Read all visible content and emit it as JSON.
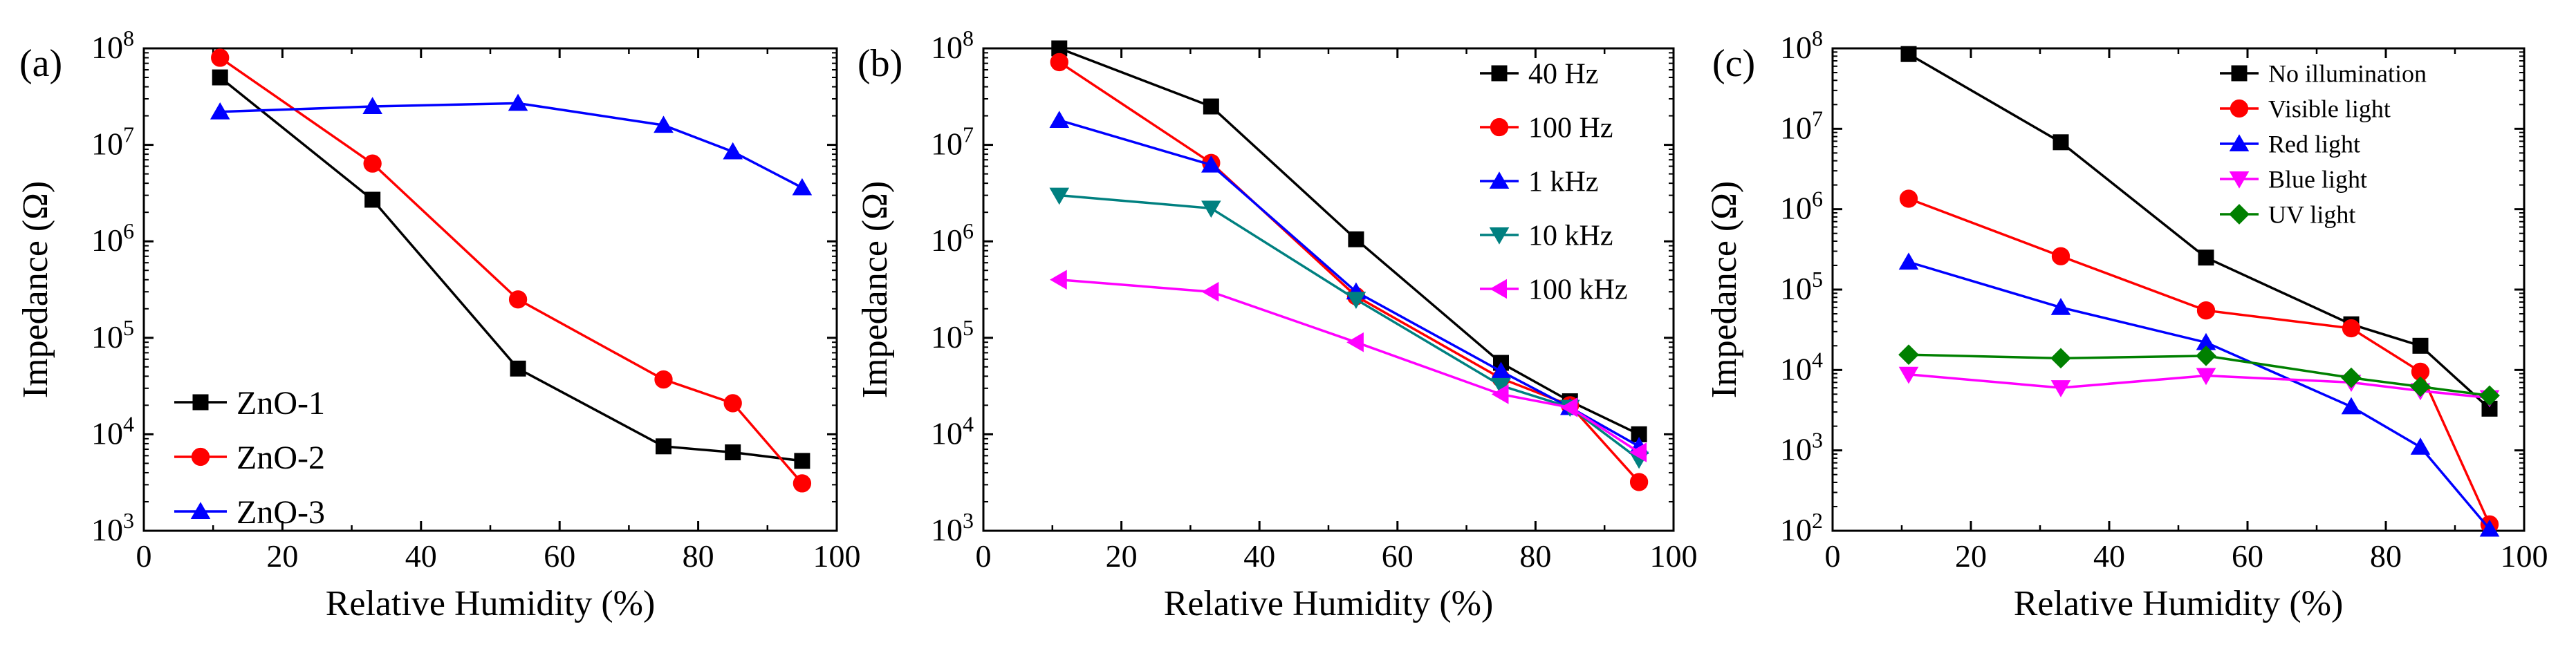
{
  "colors": {
    "black": "#000000",
    "red": "#ff0000",
    "blue": "#0000ff",
    "teal": "#008080",
    "magenta": "#ff00ff",
    "green": "#008000"
  },
  "chart_data": [
    {
      "type": "line",
      "panel": "(a)",
      "xlabel": "Relative Humidity (%)",
      "ylabel": "Impedance (Ω)",
      "xlim": [
        0,
        100
      ],
      "xticks": [
        0,
        20,
        40,
        60,
        80,
        100
      ],
      "yscale": "log",
      "ylim_exp": [
        3,
        8
      ],
      "legend_position": "bottom-left",
      "x": [
        11,
        33,
        54,
        75,
        85,
        95
      ],
      "series": [
        {
          "name": "ZnO-1",
          "color": "#000000",
          "marker": "square",
          "values": [
            50000000,
            2700000,
            48000,
            7500,
            6500,
            5300
          ]
        },
        {
          "name": "ZnO-2",
          "color": "#ff0000",
          "marker": "circle",
          "values": [
            80000000,
            6400000,
            250000,
            37000,
            21000,
            3100
          ]
        },
        {
          "name": "ZnO-3",
          "color": "#0000ff",
          "marker": "triangle-up",
          "values": [
            22000000,
            25000000,
            27000000,
            16000000,
            8500000,
            3600000
          ]
        }
      ]
    },
    {
      "type": "line",
      "panel": "(b)",
      "xlabel": "Relative Humidity (%)",
      "ylabel": "Impedance (Ω)",
      "xlim": [
        0,
        100
      ],
      "xticks": [
        0,
        20,
        40,
        60,
        80,
        100
      ],
      "yscale": "log",
      "ylim_exp": [
        3,
        8
      ],
      "legend_position": "top-right",
      "x": [
        11,
        33,
        54,
        75,
        85,
        95
      ],
      "series": [
        {
          "name": "40 Hz",
          "color": "#000000",
          "marker": "square",
          "values": [
            100000000,
            25000000,
            1050000,
            55000,
            22000,
            10000
          ]
        },
        {
          "name": "100 Hz",
          "color": "#ff0000",
          "marker": "circle",
          "values": [
            72000000,
            6500000,
            270000,
            38000,
            20000,
            3200
          ]
        },
        {
          "name": "1 kHz",
          "color": "#0000ff",
          "marker": "triangle-up",
          "values": [
            18000000,
            6200000,
            300000,
            45000,
            19000,
            7500
          ]
        },
        {
          "name": "10 kHz",
          "color": "#008080",
          "marker": "triangle-down",
          "values": [
            3000000,
            2200000,
            250000,
            32000,
            19000,
            5500
          ]
        },
        {
          "name": "100 kHz",
          "color": "#ff00ff",
          "marker": "triangle-left",
          "values": [
            400000,
            300000,
            90000,
            26000,
            19000,
            6500
          ]
        }
      ]
    },
    {
      "type": "line",
      "panel": "(c)",
      "xlabel": "Relative Humidity (%)",
      "ylabel": "Impedance (Ω)",
      "xlim": [
        0,
        100
      ],
      "xticks": [
        0,
        20,
        40,
        60,
        80,
        100
      ],
      "yscale": "log",
      "ylim_exp": [
        2,
        8
      ],
      "legend_position": "top-right",
      "x": [
        11,
        33,
        54,
        75,
        85,
        95
      ],
      "series": [
        {
          "name": "No illumination",
          "color": "#000000",
          "marker": "square",
          "values": [
            85000000,
            6800000,
            250000,
            37000,
            20000,
            3300
          ]
        },
        {
          "name": "Visible light",
          "color": "#ff0000",
          "marker": "circle",
          "values": [
            1350000,
            260000,
            55000,
            33000,
            9500,
            120
          ]
        },
        {
          "name": "Red light",
          "color": "#0000ff",
          "marker": "triangle-up",
          "values": [
            220000,
            60000,
            22000,
            3500,
            1100,
            105
          ]
        },
        {
          "name": "Blue light",
          "color": "#ff00ff",
          "marker": "triangle-down",
          "values": [
            8800,
            6000,
            8500,
            7000,
            5500,
            4500
          ]
        },
        {
          "name": "UV light",
          "color": "#008000",
          "marker": "diamond",
          "values": [
            15500,
            14000,
            15000,
            8000,
            6200,
            4800
          ]
        }
      ]
    }
  ]
}
